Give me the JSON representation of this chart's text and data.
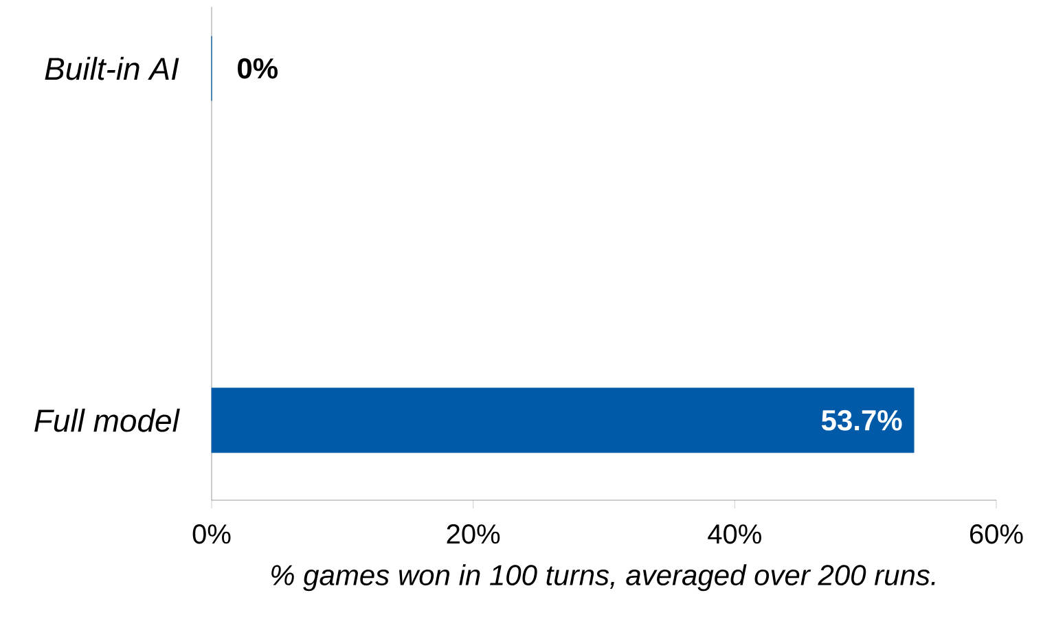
{
  "chart_data": {
    "type": "bar",
    "orientation": "horizontal",
    "categories": [
      "Built-in AI",
      "Full model"
    ],
    "values": [
      0,
      53.7
    ],
    "color": "#005aa8",
    "value_labels": [
      "0%",
      "53.7%"
    ],
    "xlabel": "% games won in 100 turns, averaged over 200 runs.",
    "xlim": [
      0,
      60
    ],
    "xticks": [
      {
        "value": 0,
        "label": "0%"
      },
      {
        "value": 20,
        "label": "20%"
      },
      {
        "value": 40,
        "label": "40%"
      },
      {
        "value": 60,
        "label": "60%"
      }
    ],
    "grid": false
  }
}
